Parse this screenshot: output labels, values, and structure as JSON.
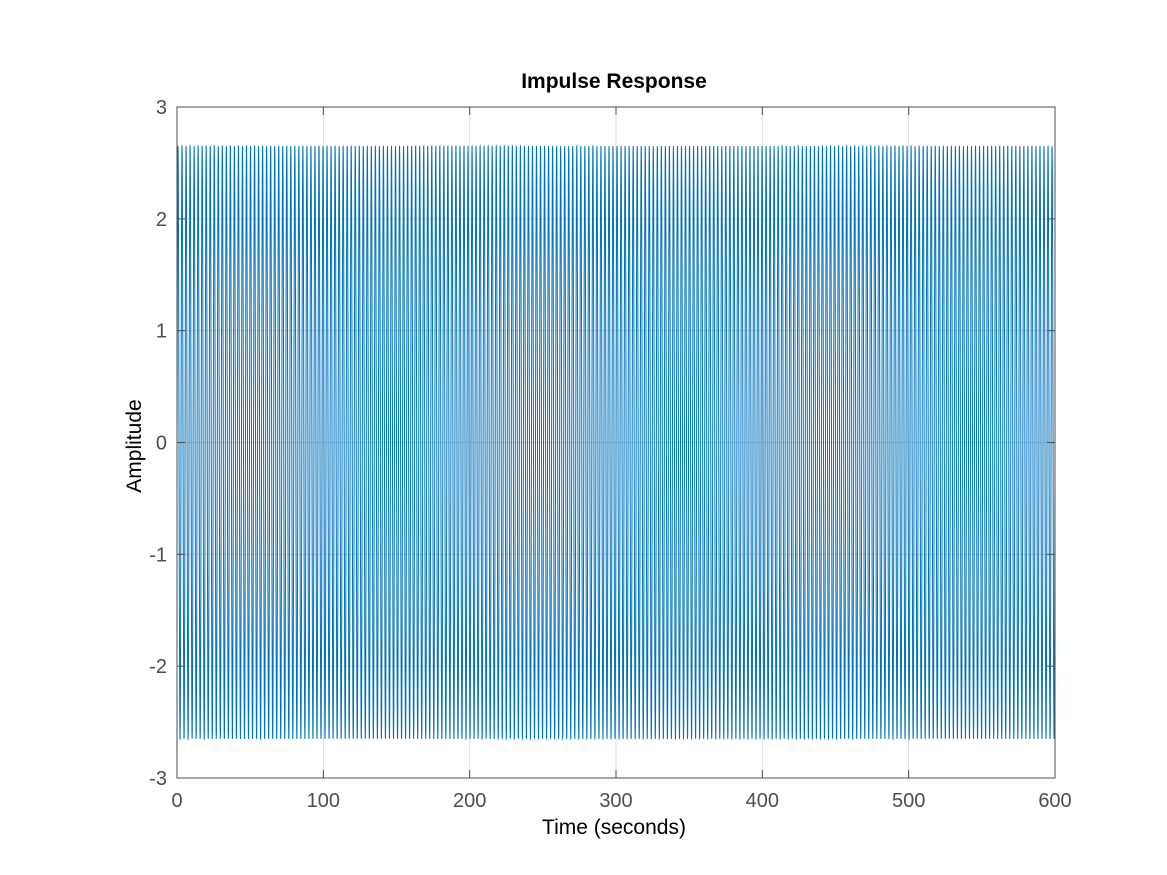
{
  "chart_data": {
    "type": "line",
    "title": "Impulse Response",
    "xlabel": "Time (seconds)",
    "ylabel": "Amplitude",
    "xlim": [
      0,
      600
    ],
    "ylim": [
      -3,
      3
    ],
    "xticks": [
      "0",
      "100",
      "200",
      "300",
      "400",
      "500",
      "600"
    ],
    "yticks": [
      "-3",
      "-2",
      "-1",
      "0",
      "1",
      "2",
      "3"
    ],
    "grid": true,
    "legend": "none",
    "series": [
      {
        "amplitude": 2.65,
        "cycles_per_second": 0.3633,
        "t_start": 0,
        "t_end": 600,
        "color": "#0072BD"
      }
    ]
  },
  "colors": {
    "line": "#0072BD",
    "axis": "#4d4d4d",
    "grid": "#dcdcdc",
    "text": "#000000"
  }
}
